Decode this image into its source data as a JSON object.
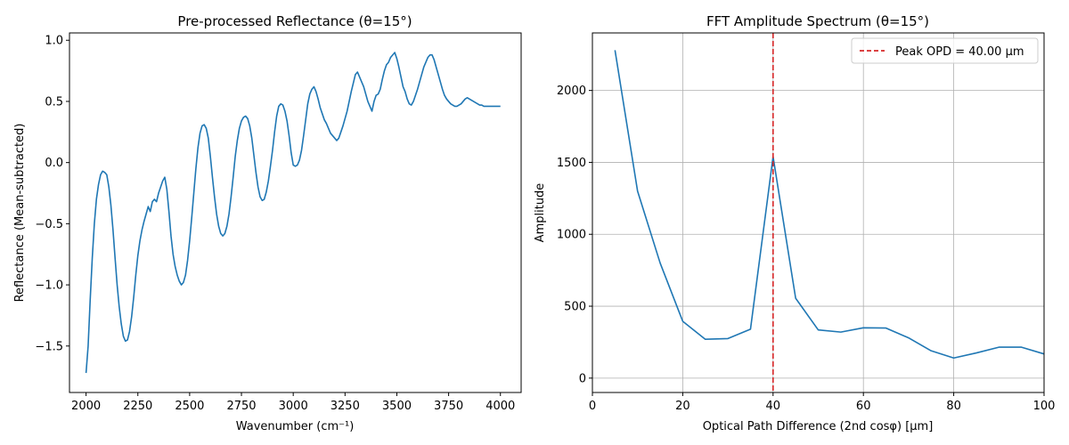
{
  "chart_data": [
    {
      "type": "line",
      "title": "Pre-processed Reflectance (θ=15°)",
      "xlabel": "Wavenumber (cm⁻¹)",
      "ylabel": "Reflectance (Mean-subtracted)",
      "xlim": [
        1920,
        4100
      ],
      "ylim": [
        -1.88,
        1.06
      ],
      "grid": false,
      "xticks": [
        2000,
        2250,
        2500,
        2750,
        3000,
        3250,
        3500,
        3750,
        4000
      ],
      "yticks": [
        -1.5,
        -1.0,
        -0.5,
        0.0,
        0.5,
        1.0
      ],
      "xtick_labels": [
        "2000",
        "2250",
        "2500",
        "2750",
        "3000",
        "3250",
        "3500",
        "3750",
        "4000"
      ],
      "ytick_labels": [
        "−1.5",
        "−1.0",
        "−0.5",
        "0.0",
        "0.5",
        "1.0"
      ],
      "series": [
        {
          "color": "#1f77b4",
          "x": [
            2000,
            2010,
            2020,
            2030,
            2040,
            2050,
            2060,
            2070,
            2080,
            2090,
            2100,
            2110,
            2120,
            2130,
            2140,
            2150,
            2160,
            2170,
            2180,
            2190,
            2200,
            2210,
            2220,
            2230,
            2240,
            2250,
            2260,
            2270,
            2280,
            2290,
            2300,
            2310,
            2320,
            2330,
            2340,
            2350,
            2360,
            2370,
            2380,
            2390,
            2400,
            2410,
            2420,
            2430,
            2440,
            2450,
            2460,
            2470,
            2480,
            2490,
            2500,
            2510,
            2520,
            2530,
            2540,
            2550,
            2560,
            2570,
            2580,
            2590,
            2600,
            2610,
            2620,
            2630,
            2640,
            2650,
            2660,
            2670,
            2680,
            2690,
            2700,
            2710,
            2720,
            2730,
            2740,
            2750,
            2760,
            2770,
            2780,
            2790,
            2800,
            2810,
            2820,
            2830,
            2840,
            2850,
            2860,
            2870,
            2880,
            2890,
            2900,
            2910,
            2920,
            2930,
            2940,
            2950,
            2960,
            2970,
            2980,
            2990,
            3000,
            3010,
            3020,
            3030,
            3040,
            3050,
            3060,
            3070,
            3080,
            3090,
            3100,
            3110,
            3120,
            3130,
            3140,
            3150,
            3160,
            3170,
            3180,
            3190,
            3200,
            3210,
            3220,
            3230,
            3240,
            3250,
            3260,
            3270,
            3280,
            3290,
            3300,
            3310,
            3320,
            3330,
            3340,
            3350,
            3360,
            3370,
            3380,
            3390,
            3400,
            3410,
            3420,
            3430,
            3440,
            3450,
            3460,
            3470,
            3480,
            3490,
            3500,
            3510,
            3520,
            3530,
            3540,
            3550,
            3560,
            3570,
            3580,
            3590,
            3600,
            3610,
            3620,
            3630,
            3640,
            3650,
            3660,
            3670,
            3680,
            3690,
            3700,
            3710,
            3720,
            3730,
            3740,
            3750,
            3760,
            3770,
            3780,
            3790,
            3800,
            3810,
            3820,
            3830,
            3840,
            3850,
            3860,
            3870,
            3880,
            3890,
            3900,
            3910,
            3920,
            3930,
            3940,
            3950,
            3960,
            3970,
            3980,
            3990,
            4000
          ],
          "y": [
            -1.72,
            -1.5,
            -1.12,
            -0.78,
            -0.5,
            -0.3,
            -0.18,
            -0.1,
            -0.07,
            -0.08,
            -0.1,
            -0.2,
            -0.35,
            -0.55,
            -0.78,
            -1.0,
            -1.18,
            -1.32,
            -1.42,
            -1.46,
            -1.45,
            -1.38,
            -1.26,
            -1.1,
            -0.92,
            -0.76,
            -0.64,
            -0.55,
            -0.48,
            -0.42,
            -0.36,
            -0.4,
            -0.32,
            -0.3,
            -0.32,
            -0.25,
            -0.2,
            -0.15,
            -0.12,
            -0.22,
            -0.4,
            -0.6,
            -0.75,
            -0.85,
            -0.92,
            -0.97,
            -1.0,
            -0.98,
            -0.92,
            -0.8,
            -0.64,
            -0.45,
            -0.25,
            -0.05,
            0.12,
            0.24,
            0.3,
            0.31,
            0.28,
            0.2,
            0.05,
            -0.12,
            -0.28,
            -0.42,
            -0.52,
            -0.58,
            -0.6,
            -0.58,
            -0.52,
            -0.42,
            -0.28,
            -0.12,
            0.05,
            0.18,
            0.28,
            0.34,
            0.37,
            0.38,
            0.36,
            0.3,
            0.2,
            0.06,
            -0.08,
            -0.2,
            -0.28,
            -0.31,
            -0.3,
            -0.24,
            -0.15,
            -0.03,
            0.1,
            0.25,
            0.38,
            0.46,
            0.48,
            0.47,
            0.42,
            0.34,
            0.22,
            0.08,
            -0.02,
            -0.03,
            -0.02,
            0.02,
            0.1,
            0.22,
            0.35,
            0.48,
            0.56,
            0.6,
            0.62,
            0.58,
            0.52,
            0.45,
            0.4,
            0.35,
            0.32,
            0.28,
            0.24,
            0.22,
            0.2,
            0.18,
            0.2,
            0.25,
            0.3,
            0.36,
            0.42,
            0.5,
            0.58,
            0.65,
            0.72,
            0.74,
            0.7,
            0.66,
            0.62,
            0.56,
            0.5,
            0.46,
            0.42,
            0.5,
            0.55,
            0.56,
            0.6,
            0.68,
            0.75,
            0.8,
            0.82,
            0.86,
            0.88,
            0.9,
            0.85,
            0.78,
            0.7,
            0.62,
            0.58,
            0.52,
            0.48,
            0.47,
            0.5,
            0.55,
            0.6,
            0.66,
            0.72,
            0.78,
            0.82,
            0.86,
            0.88,
            0.88,
            0.84,
            0.78,
            0.72,
            0.66,
            0.6,
            0.55,
            0.52,
            0.5,
            0.48,
            0.47,
            0.46,
            0.46,
            0.47,
            0.48,
            0.5,
            0.52,
            0.53,
            0.52,
            0.51,
            0.5,
            0.49,
            0.48,
            0.47,
            0.47,
            0.46,
            0.46,
            0.46,
            0.46,
            0.46,
            0.46,
            0.46,
            0.46,
            0.46
          ]
        }
      ]
    },
    {
      "type": "line",
      "title": "FFT Amplitude Spectrum (θ=15°)",
      "xlabel": "Optical Path Difference (2nd cosφ) [µm]",
      "ylabel": "Amplitude",
      "xlim": [
        0,
        100
      ],
      "ylim": [
        -100,
        2400
      ],
      "grid": true,
      "legend_position": "top-right",
      "xticks": [
        0,
        20,
        40,
        60,
        80,
        100
      ],
      "yticks": [
        0,
        500,
        1000,
        1500,
        2000
      ],
      "xtick_labels": [
        "0",
        "20",
        "40",
        "60",
        "80",
        "100"
      ],
      "ytick_labels": [
        "0",
        "500",
        "1000",
        "1500",
        "2000"
      ],
      "series": [
        {
          "color": "#1f77b4",
          "x": [
            5,
            10,
            15,
            20,
            25,
            30,
            35,
            40,
            45,
            50,
            55,
            60,
            65,
            70,
            75,
            80,
            85,
            90,
            95,
            100
          ],
          "y": [
            2280,
            1300,
            800,
            395,
            270,
            275,
            340,
            1540,
            555,
            335,
            320,
            350,
            348,
            280,
            190,
            140,
            175,
            215,
            215,
            168
          ]
        }
      ],
      "reference_line": {
        "orientation": "vertical",
        "x": 40,
        "color": "#d62728",
        "style": "dashed",
        "label": "Peak OPD = 40.00 µm"
      }
    }
  ]
}
